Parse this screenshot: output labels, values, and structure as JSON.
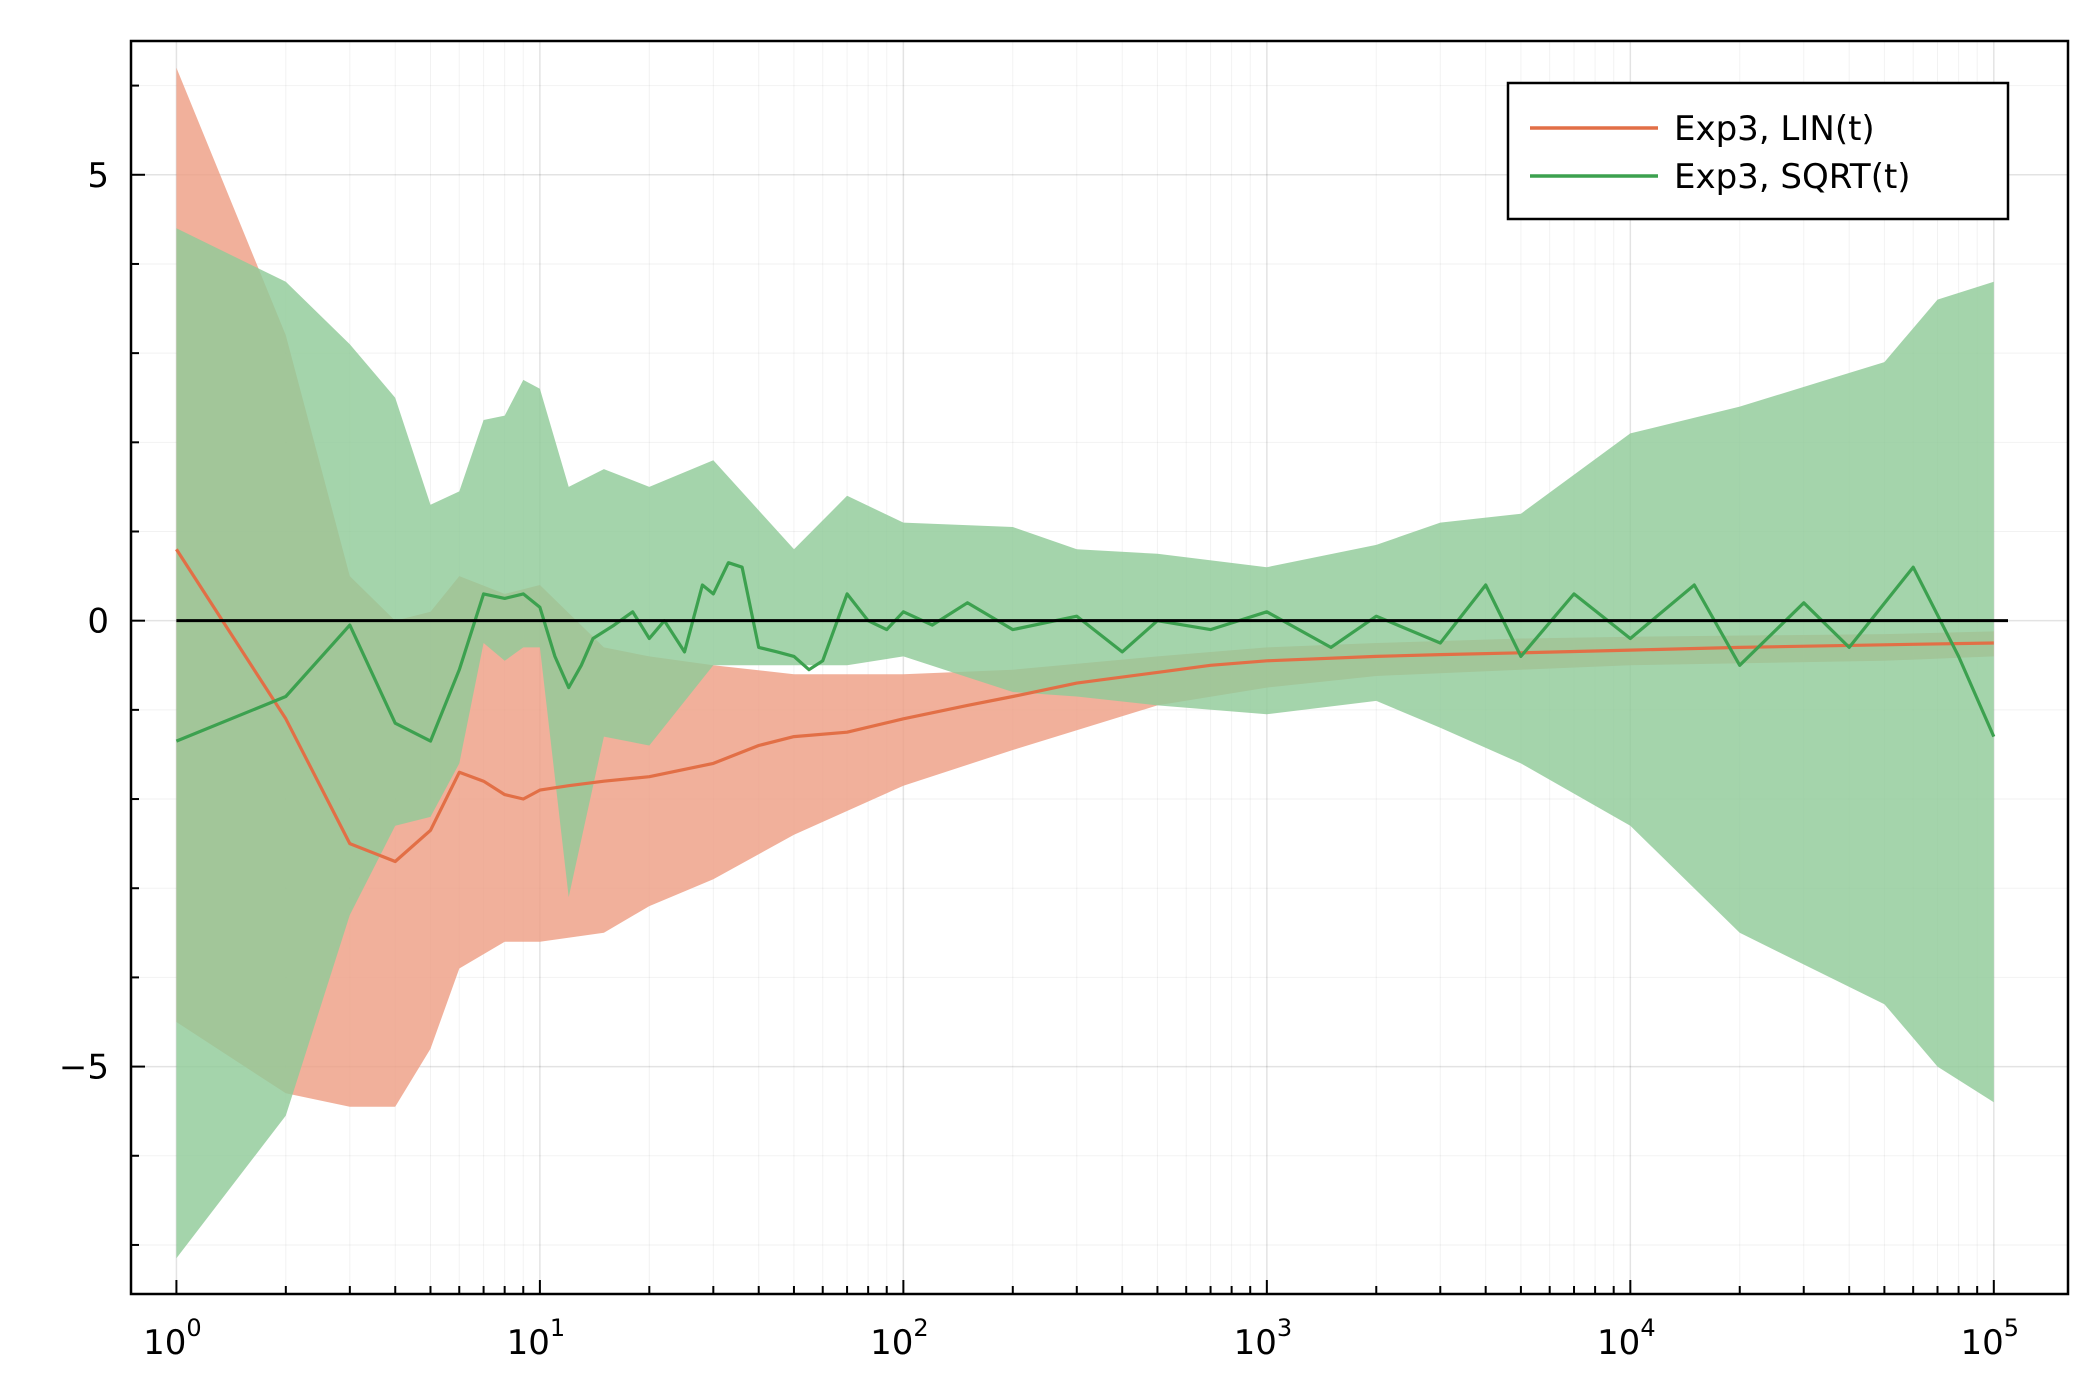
{
  "chart_data": {
    "type": "line",
    "title": "",
    "xlabel": "",
    "ylabel": "",
    "xscale": "log",
    "xlim": [
      0.75,
      160000
    ],
    "ylim": [
      -7.55,
      6.5
    ],
    "grid": true,
    "legend_position": "top-right",
    "x_ticks": [
      {
        "base": "10",
        "exp": "0",
        "value": 1
      },
      {
        "base": "10",
        "exp": "1",
        "value": 10
      },
      {
        "base": "10",
        "exp": "2",
        "value": 100
      },
      {
        "base": "10",
        "exp": "3",
        "value": 1000
      },
      {
        "base": "10",
        "exp": "4",
        "value": 10000
      },
      {
        "base": "10",
        "exp": "5",
        "value": 100000
      }
    ],
    "y_ticks": [
      {
        "label": "5",
        "value": 5
      },
      {
        "label": "0",
        "value": 0
      },
      {
        "label": "−5",
        "value": -5
      }
    ],
    "reference_line": {
      "y": 0,
      "color": "#000000"
    },
    "series": [
      {
        "name": "Exp3, LIN(t)",
        "color": "#e26f46",
        "band_color": "#ee9f85",
        "mean": [
          [
            1,
            0.8
          ],
          [
            2,
            -1.1
          ],
          [
            3,
            -2.5
          ],
          [
            4,
            -2.7
          ],
          [
            5,
            -2.35
          ],
          [
            6,
            -1.7
          ],
          [
            7,
            -1.8
          ],
          [
            8,
            -1.95
          ],
          [
            9,
            -2.0
          ],
          [
            10,
            -1.9
          ],
          [
            12,
            -1.85
          ],
          [
            15,
            -1.8
          ],
          [
            20,
            -1.75
          ],
          [
            30,
            -1.6
          ],
          [
            40,
            -1.4
          ],
          [
            50,
            -1.3
          ],
          [
            70,
            -1.25
          ],
          [
            100,
            -1.1
          ],
          [
            150,
            -0.95
          ],
          [
            200,
            -0.85
          ],
          [
            300,
            -0.7
          ],
          [
            500,
            -0.58
          ],
          [
            700,
            -0.5
          ],
          [
            1000,
            -0.45
          ],
          [
            2000,
            -0.4
          ],
          [
            3000,
            -0.38
          ],
          [
            5000,
            -0.36
          ],
          [
            10000,
            -0.33
          ],
          [
            20000,
            -0.3
          ],
          [
            50000,
            -0.27
          ],
          [
            100000,
            -0.25
          ]
        ],
        "upper": [
          [
            1,
            6.2
          ],
          [
            2,
            3.2
          ],
          [
            3,
            0.5
          ],
          [
            4,
            0.0
          ],
          [
            5,
            0.1
          ],
          [
            6,
            0.5
          ],
          [
            8,
            0.3
          ],
          [
            10,
            0.4
          ],
          [
            15,
            -0.3
          ],
          [
            20,
            -0.4
          ],
          [
            30,
            -0.5
          ],
          [
            50,
            -0.6
          ],
          [
            100,
            -0.6
          ],
          [
            200,
            -0.55
          ],
          [
            500,
            -0.4
          ],
          [
            1000,
            -0.3
          ],
          [
            2000,
            -0.25
          ],
          [
            5000,
            -0.2
          ],
          [
            10000,
            -0.18
          ],
          [
            50000,
            -0.15
          ],
          [
            100000,
            -0.12
          ]
        ],
        "lower": [
          [
            1,
            -4.5
          ],
          [
            2,
            -5.3
          ],
          [
            3,
            -5.45
          ],
          [
            4,
            -5.45
          ],
          [
            5,
            -4.8
          ],
          [
            6,
            -3.9
          ],
          [
            8,
            -3.6
          ],
          [
            10,
            -3.6
          ],
          [
            15,
            -3.5
          ],
          [
            20,
            -3.2
          ],
          [
            30,
            -2.9
          ],
          [
            50,
            -2.4
          ],
          [
            100,
            -1.85
          ],
          [
            200,
            -1.45
          ],
          [
            500,
            -0.95
          ],
          [
            1000,
            -0.75
          ],
          [
            2000,
            -0.62
          ],
          [
            5000,
            -0.55
          ],
          [
            10000,
            -0.5
          ],
          [
            50000,
            -0.45
          ],
          [
            100000,
            -0.4
          ]
        ]
      },
      {
        "name": "Exp3, SQRT(t)",
        "color": "#3ca14f",
        "band_color": "#90cb99",
        "mean": [
          [
            1,
            -1.35
          ],
          [
            2,
            -0.85
          ],
          [
            3,
            -0.05
          ],
          [
            4,
            -1.15
          ],
          [
            5,
            -1.35
          ],
          [
            6,
            -0.55
          ],
          [
            7,
            0.3
          ],
          [
            8,
            0.25
          ],
          [
            9,
            0.3
          ],
          [
            10,
            0.15
          ],
          [
            11,
            -0.4
          ],
          [
            12,
            -0.75
          ],
          [
            13,
            -0.5
          ],
          [
            14,
            -0.2
          ],
          [
            16,
            -0.05
          ],
          [
            18,
            0.1
          ],
          [
            20,
            -0.2
          ],
          [
            22,
            0.0
          ],
          [
            25,
            -0.35
          ],
          [
            28,
            0.4
          ],
          [
            30,
            0.3
          ],
          [
            33,
            0.65
          ],
          [
            36,
            0.6
          ],
          [
            40,
            -0.3
          ],
          [
            45,
            -0.35
          ],
          [
            50,
            -0.4
          ],
          [
            55,
            -0.55
          ],
          [
            60,
            -0.45
          ],
          [
            70,
            0.3
          ],
          [
            80,
            0.0
          ],
          [
            90,
            -0.1
          ],
          [
            100,
            0.1
          ],
          [
            120,
            -0.05
          ],
          [
            150,
            0.2
          ],
          [
            200,
            -0.1
          ],
          [
            300,
            0.05
          ],
          [
            400,
            -0.35
          ],
          [
            500,
            0.0
          ],
          [
            700,
            -0.1
          ],
          [
            1000,
            0.1
          ],
          [
            1500,
            -0.3
          ],
          [
            2000,
            0.05
          ],
          [
            3000,
            -0.25
          ],
          [
            4000,
            0.4
          ],
          [
            5000,
            -0.4
          ],
          [
            7000,
            0.3
          ],
          [
            10000,
            -0.2
          ],
          [
            15000,
            0.4
          ],
          [
            20000,
            -0.5
          ],
          [
            30000,
            0.2
          ],
          [
            40000,
            -0.3
          ],
          [
            60000,
            0.6
          ],
          [
            80000,
            -0.4
          ],
          [
            100000,
            -1.3
          ]
        ],
        "upper": [
          [
            1,
            4.4
          ],
          [
            2,
            3.8
          ],
          [
            3,
            3.1
          ],
          [
            4,
            2.5
          ],
          [
            5,
            1.3
          ],
          [
            6,
            1.45
          ],
          [
            7,
            2.25
          ],
          [
            8,
            2.3
          ],
          [
            9,
            2.7
          ],
          [
            10,
            2.6
          ],
          [
            12,
            1.5
          ],
          [
            15,
            1.7
          ],
          [
            20,
            1.5
          ],
          [
            30,
            1.8
          ],
          [
            50,
            0.8
          ],
          [
            70,
            1.4
          ],
          [
            100,
            1.1
          ],
          [
            200,
            1.05
          ],
          [
            300,
            0.8
          ],
          [
            500,
            0.75
          ],
          [
            1000,
            0.6
          ],
          [
            2000,
            0.85
          ],
          [
            3000,
            1.1
          ],
          [
            5000,
            1.2
          ],
          [
            10000,
            2.1
          ],
          [
            20000,
            2.4
          ],
          [
            50000,
            2.9
          ],
          [
            70000,
            3.6
          ],
          [
            100000,
            3.8
          ]
        ],
        "lower": [
          [
            1,
            -7.15
          ],
          [
            2,
            -5.55
          ],
          [
            3,
            -3.3
          ],
          [
            4,
            -2.3
          ],
          [
            5,
            -2.2
          ],
          [
            6,
            -1.6
          ],
          [
            7,
            -0.25
          ],
          [
            8,
            -0.45
          ],
          [
            9,
            -0.3
          ],
          [
            10,
            -0.3
          ],
          [
            12,
            -3.1
          ],
          [
            15,
            -1.3
          ],
          [
            20,
            -1.4
          ],
          [
            30,
            -0.5
          ],
          [
            50,
            -0.5
          ],
          [
            70,
            -0.5
          ],
          [
            100,
            -0.4
          ],
          [
            200,
            -0.8
          ],
          [
            300,
            -0.85
          ],
          [
            500,
            -0.95
          ],
          [
            1000,
            -1.05
          ],
          [
            2000,
            -0.9
          ],
          [
            3000,
            -1.2
          ],
          [
            5000,
            -1.6
          ],
          [
            10000,
            -2.3
          ],
          [
            20000,
            -3.5
          ],
          [
            50000,
            -4.3
          ],
          [
            70000,
            -5.0
          ],
          [
            100000,
            -5.4
          ]
        ]
      }
    ]
  }
}
